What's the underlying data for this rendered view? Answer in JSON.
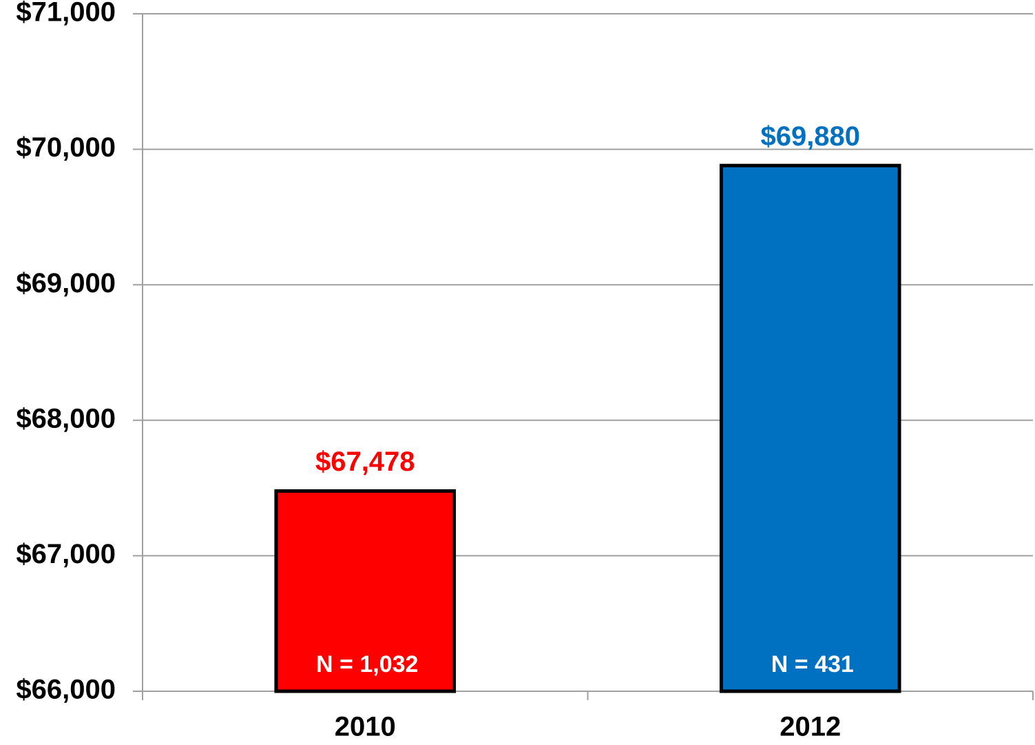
{
  "chart_data": {
    "type": "bar",
    "categories": [
      "2010",
      "2012"
    ],
    "values": [
      67478,
      69880
    ],
    "value_labels": [
      "$67,478",
      "$69,880"
    ],
    "annotations": [
      "N = 1,032",
      "N = 431"
    ],
    "colors": [
      "#ff0000",
      "#0070c0"
    ],
    "ylim": [
      66000,
      71000
    ],
    "yticks": [
      {
        "value": 66000,
        "label": "$66,000"
      },
      {
        "value": 67000,
        "label": "$67,000"
      },
      {
        "value": 68000,
        "label": "$68,000"
      },
      {
        "value": 69000,
        "label": "$69,000"
      },
      {
        "value": 70000,
        "label": "$70,000"
      },
      {
        "value": 71000,
        "label": "$71,000"
      }
    ],
    "grid": true
  }
}
